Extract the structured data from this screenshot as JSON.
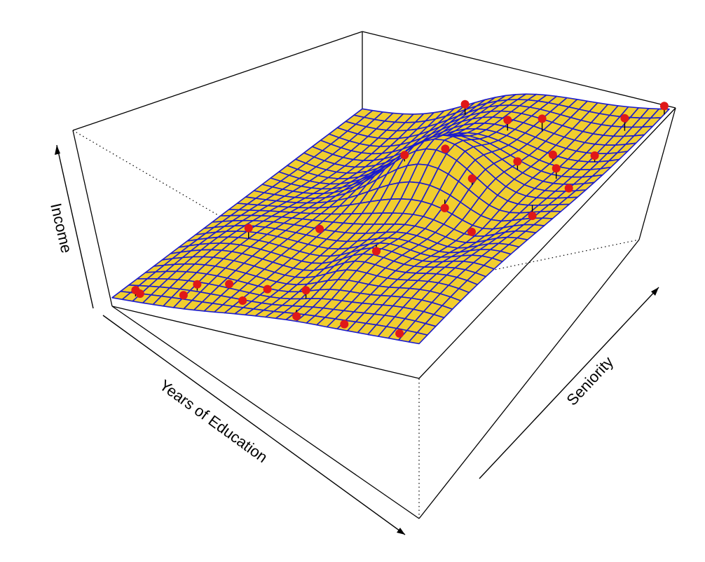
{
  "chart_data": {
    "type": "surface3d",
    "xlabel": "Years of Education",
    "ylabel": "Seniority",
    "zlabel": "Income",
    "surface_grid_resolution": 30,
    "colors": {
      "surface_fill": "#f1ce2e",
      "surface_mesh": "#1c1ccc",
      "points": "#e01818",
      "residual_stems": "#000000",
      "box": "#000000"
    },
    "points_count": 30
  }
}
